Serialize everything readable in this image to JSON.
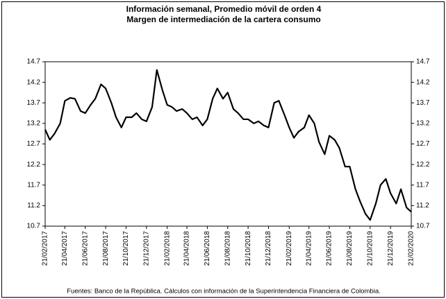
{
  "chart_data": {
    "type": "line",
    "title": "Información semanal, Promedio móvil de orden 4",
    "subtitle": "Margen de intermediación de la cartera consumo",
    "source": "Fuentes: Banco de la República. Cálculos con información de la Superintendencia Financiera de Colombia.",
    "x": [
      "21/02/2017",
      "07/03/2017",
      "21/03/2017",
      "07/04/2017",
      "21/04/2017",
      "07/05/2017",
      "21/05/2017",
      "07/06/2017",
      "21/06/2017",
      "07/07/2017",
      "21/07/2017",
      "07/08/2017",
      "21/08/2017",
      "07/09/2017",
      "21/09/2017",
      "07/10/2017",
      "21/10/2017",
      "07/11/2017",
      "21/11/2017",
      "07/12/2017",
      "21/12/2017",
      "07/01/2018",
      "21/01/2018",
      "07/02/2018",
      "21/02/2018",
      "07/03/2018",
      "21/03/2018",
      "07/04/2018",
      "21/04/2018",
      "07/05/2018",
      "21/05/2018",
      "07/06/2018",
      "21/06/2018",
      "07/07/2018",
      "21/07/2018",
      "07/08/2018",
      "21/08/2018",
      "07/09/2018",
      "21/09/2018",
      "07/10/2018",
      "21/10/2018",
      "07/11/2018",
      "21/11/2018",
      "07/12/2018",
      "21/12/2018",
      "07/01/2019",
      "21/01/2019",
      "07/02/2019",
      "21/02/2019",
      "07/03/2019",
      "21/03/2019",
      "07/04/2019",
      "21/04/2019",
      "07/05/2019",
      "21/05/2019",
      "07/06/2019",
      "21/06/2019",
      "07/07/2019",
      "21/07/2019",
      "07/08/2019",
      "21/08/2019",
      "07/09/2019",
      "21/09/2019",
      "07/10/2019",
      "21/10/2019",
      "07/11/2019",
      "21/11/2019",
      "07/12/2019",
      "21/12/2019",
      "07/01/2020",
      "21/01/2020",
      "07/02/2020",
      "21/02/2020"
    ],
    "series": [
      {
        "name": "Margen de intermediación de la cartera consumo",
        "color": "#000000",
        "values": [
          13.05,
          12.8,
          12.95,
          13.2,
          13.75,
          13.82,
          13.8,
          13.5,
          13.45,
          13.65,
          13.8,
          14.15,
          14.05,
          13.7,
          13.35,
          13.1,
          13.35,
          13.35,
          13.45,
          13.3,
          13.25,
          13.6,
          14.5,
          14.0,
          13.65,
          13.6,
          13.5,
          13.55,
          13.45,
          13.3,
          13.35,
          13.15,
          13.3,
          13.8,
          14.05,
          13.8,
          13.95,
          13.55,
          13.45,
          13.3,
          13.3,
          13.2,
          13.25,
          13.15,
          13.1,
          13.7,
          13.75,
          13.4,
          13.1,
          12.85,
          13.0,
          13.1,
          13.4,
          13.2,
          12.75,
          12.45,
          12.9,
          12.8,
          12.6,
          12.15,
          12.15,
          11.6,
          11.3,
          11.0,
          10.85,
          11.25,
          11.7,
          11.85,
          11.5,
          11.25,
          11.6,
          11.15,
          11.05
        ]
      }
    ],
    "xlim": [
      "21/02/2017",
      "21/02/2020"
    ],
    "xticks": [
      "21/02/2017",
      "21/04/2017",
      "21/06/2017",
      "21/08/2017",
      "21/10/2017",
      "21/12/2017",
      "21/02/2018",
      "21/04/2018",
      "21/06/2018",
      "21/08/2018",
      "21/10/2018",
      "21/12/2018",
      "21/02/2019",
      "21/04/2019",
      "21/06/2019",
      "21/08/2019",
      "21/10/2019",
      "21/12/2019",
      "21/02/2020"
    ],
    "ylim": [
      10.7,
      14.7
    ],
    "yticks": [
      10.7,
      11.2,
      11.7,
      12.2,
      12.7,
      13.2,
      13.7,
      14.2,
      14.7
    ],
    "grid": false
  }
}
